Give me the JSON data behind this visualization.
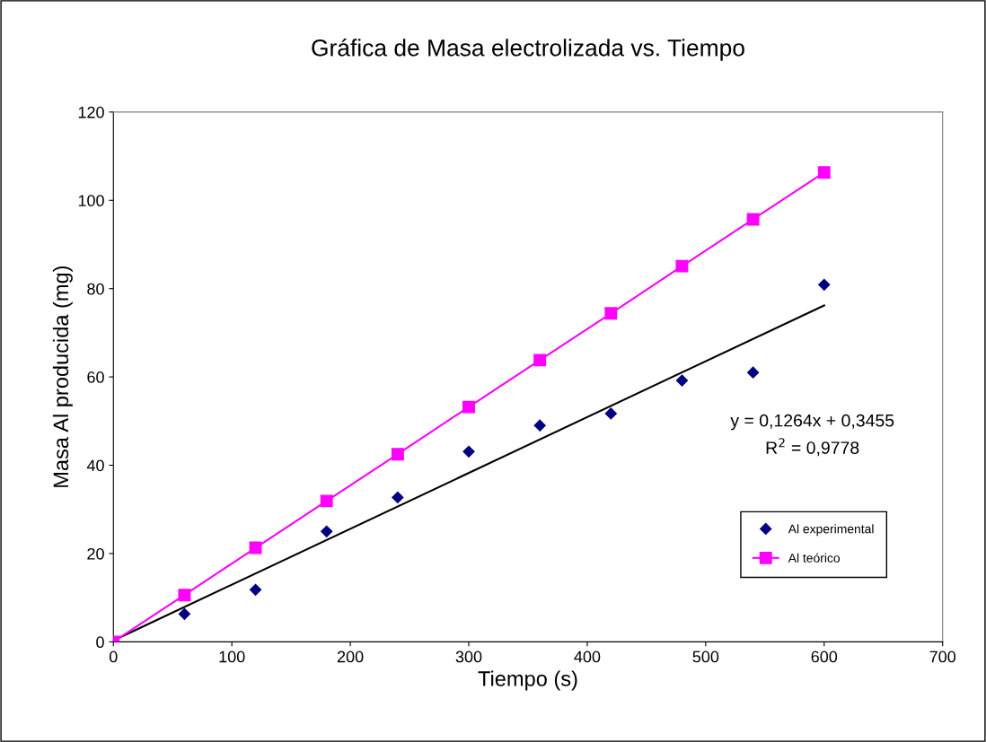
{
  "chart_data": {
    "type": "scatter",
    "title": "Gráfica de Masa electrolizada vs. Tiempo",
    "xlabel": "Tiempo (s)",
    "ylabel": "Masa Al producida (mg)",
    "x": [
      0,
      60,
      120,
      180,
      240,
      300,
      360,
      420,
      480,
      540,
      600
    ],
    "series": [
      {
        "name": "Al experimental",
        "marker": "diamond",
        "color": "#000080",
        "values": [
          0,
          6.3,
          11.8,
          25.0,
          32.7,
          43.1,
          49.0,
          51.7,
          59.2,
          61.0,
          80.9
        ]
      },
      {
        "name": "Al teórico",
        "type": "line",
        "marker": "square",
        "line_style": "solid",
        "color": "#ff00ff",
        "values": [
          0,
          10.6,
          21.3,
          31.9,
          42.5,
          53.2,
          63.8,
          74.4,
          85.1,
          95.7,
          106.3
        ]
      },
      {
        "type": "line",
        "marker": "none",
        "line_style": "solid",
        "color": "#000000",
        "x": [
          0,
          600
        ],
        "values": [
          0.3,
          76.2
        ]
      }
    ],
    "xlim": [
      0,
      700
    ],
    "xticks": [
      0,
      100,
      200,
      300,
      400,
      500,
      600,
      700
    ],
    "ylim": [
      0,
      120
    ],
    "yticks": [
      0,
      20,
      40,
      60,
      80,
      100,
      120
    ],
    "annotations": [
      "y = 0,1264x + 0,3455",
      "R$^{2}$ = 0,9778"
    ],
    "grid": false,
    "legend": "bottom right"
  }
}
